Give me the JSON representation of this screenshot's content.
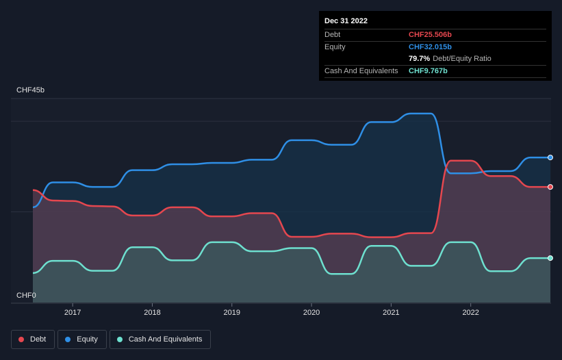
{
  "tooltip": {
    "date": "Dec 31 2022",
    "debt_label": "Debt",
    "debt_value": "CHF25.506b",
    "equity_label": "Equity",
    "equity_value": "CHF32.015b",
    "ratio_value": "79.7%",
    "ratio_text": "Debt/Equity Ratio",
    "cash_label": "Cash And Equivalents",
    "cash_value": "CHF9.767b"
  },
  "legend": [
    {
      "name": "Debt",
      "color": "#e5474f"
    },
    {
      "name": "Equity",
      "color": "#2f8fe6"
    },
    {
      "name": "Cash And Equivalents",
      "color": "#6ee0cf"
    }
  ],
  "chart_data": {
    "type": "area",
    "unit": "CHF",
    "y_top_label": "CHF45b",
    "y_bottom_label": "CHF0",
    "ylim": [
      0,
      45
    ],
    "xlim": [
      2016.5,
      2023.0
    ],
    "x_ticks": [
      2017,
      2018,
      2019,
      2020,
      2021,
      2022
    ],
    "x_tick_labels": [
      "2017",
      "2018",
      "2019",
      "2020",
      "2021",
      "2022"
    ],
    "grid": true,
    "series": [
      {
        "name": "Debt",
        "color": "#e5474f",
        "fill": "#5a3d52",
        "points": [
          [
            2016.5,
            24.8
          ],
          [
            2016.75,
            22.5
          ],
          [
            2017.0,
            22.4
          ],
          [
            2017.25,
            21.3
          ],
          [
            2017.5,
            21.2
          ],
          [
            2017.75,
            19.2
          ],
          [
            2018.0,
            19.2
          ],
          [
            2018.25,
            21.0
          ],
          [
            2018.5,
            21.0
          ],
          [
            2018.75,
            19.0
          ],
          [
            2019.0,
            19.0
          ],
          [
            2019.25,
            19.7
          ],
          [
            2019.5,
            19.7
          ],
          [
            2019.75,
            14.5
          ],
          [
            2020.0,
            14.5
          ],
          [
            2020.25,
            15.2
          ],
          [
            2020.5,
            15.2
          ],
          [
            2020.75,
            14.4
          ],
          [
            2021.0,
            14.4
          ],
          [
            2021.25,
            15.3
          ],
          [
            2021.5,
            15.3
          ],
          [
            2021.75,
            31.3
          ],
          [
            2022.0,
            31.3
          ],
          [
            2022.25,
            27.9
          ],
          [
            2022.5,
            27.9
          ],
          [
            2022.75,
            25.5
          ],
          [
            2023.0,
            25.5
          ]
        ]
      },
      {
        "name": "Equity",
        "color": "#2f8fe6",
        "fill": "#15314a",
        "points": [
          [
            2016.5,
            21.0
          ],
          [
            2016.75,
            26.5
          ],
          [
            2017.0,
            26.5
          ],
          [
            2017.25,
            25.5
          ],
          [
            2017.5,
            25.5
          ],
          [
            2017.75,
            29.2
          ],
          [
            2018.0,
            29.2
          ],
          [
            2018.25,
            30.5
          ],
          [
            2018.5,
            30.5
          ],
          [
            2018.75,
            30.8
          ],
          [
            2019.0,
            30.8
          ],
          [
            2019.25,
            31.5
          ],
          [
            2019.5,
            31.5
          ],
          [
            2019.75,
            35.8
          ],
          [
            2020.0,
            35.8
          ],
          [
            2020.25,
            34.8
          ],
          [
            2020.5,
            34.8
          ],
          [
            2020.75,
            39.8
          ],
          [
            2021.0,
            39.8
          ],
          [
            2021.25,
            41.7
          ],
          [
            2021.5,
            41.7
          ],
          [
            2021.75,
            28.5
          ],
          [
            2022.0,
            28.5
          ],
          [
            2022.25,
            29.0
          ],
          [
            2022.5,
            29.0
          ],
          [
            2022.75,
            32.0
          ],
          [
            2023.0,
            32.0
          ]
        ]
      },
      {
        "name": "Cash And Equivalents",
        "color": "#6ee0cf",
        "fill": "#3a5a5e",
        "points": [
          [
            2016.5,
            6.5
          ],
          [
            2016.75,
            9.2
          ],
          [
            2017.0,
            9.2
          ],
          [
            2017.25,
            7.0
          ],
          [
            2017.5,
            7.0
          ],
          [
            2017.75,
            12.2
          ],
          [
            2018.0,
            12.2
          ],
          [
            2018.25,
            9.3
          ],
          [
            2018.5,
            9.3
          ],
          [
            2018.75,
            13.3
          ],
          [
            2019.0,
            13.3
          ],
          [
            2019.25,
            11.3
          ],
          [
            2019.5,
            11.3
          ],
          [
            2019.75,
            12.0
          ],
          [
            2020.0,
            12.0
          ],
          [
            2020.25,
            6.3
          ],
          [
            2020.5,
            6.3
          ],
          [
            2020.75,
            12.5
          ],
          [
            2021.0,
            12.5
          ],
          [
            2021.25,
            8.1
          ],
          [
            2021.5,
            8.1
          ],
          [
            2021.75,
            13.3
          ],
          [
            2022.0,
            13.3
          ],
          [
            2022.25,
            6.9
          ],
          [
            2022.5,
            6.9
          ],
          [
            2022.75,
            9.8
          ],
          [
            2023.0,
            9.8
          ]
        ]
      }
    ]
  }
}
